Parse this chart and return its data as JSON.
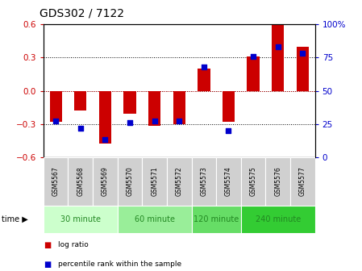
{
  "title": "GDS302 / 7122",
  "samples": [
    "GSM5567",
    "GSM5568",
    "GSM5569",
    "GSM5570",
    "GSM5571",
    "GSM5572",
    "GSM5573",
    "GSM5574",
    "GSM5575",
    "GSM5576",
    "GSM5577"
  ],
  "log_ratio": [
    -0.28,
    -0.18,
    -0.48,
    -0.21,
    -0.32,
    -0.3,
    0.2,
    -0.28,
    0.31,
    0.6,
    0.4
  ],
  "percentile": [
    27,
    22,
    13,
    26,
    27,
    27,
    68,
    20,
    76,
    83,
    78
  ],
  "time_groups": [
    {
      "label": "30 minute",
      "start": 0,
      "end": 3,
      "color": "#ccffcc"
    },
    {
      "label": "60 minute",
      "start": 3,
      "end": 6,
      "color": "#99ee99"
    },
    {
      "label": "120 minute",
      "start": 6,
      "end": 8,
      "color": "#66dd66"
    },
    {
      "label": "240 minute",
      "start": 8,
      "end": 11,
      "color": "#33cc33"
    }
  ],
  "ylim": [
    -0.6,
    0.6
  ],
  "yticks": [
    -0.6,
    -0.3,
    0.0,
    0.3,
    0.6
  ],
  "y2lim": [
    0,
    100
  ],
  "y2ticks": [
    0,
    25,
    50,
    75,
    100
  ],
  "bar_color": "#cc0000",
  "dot_color": "#0000cc",
  "bar_width": 0.5,
  "dot_size": 25
}
